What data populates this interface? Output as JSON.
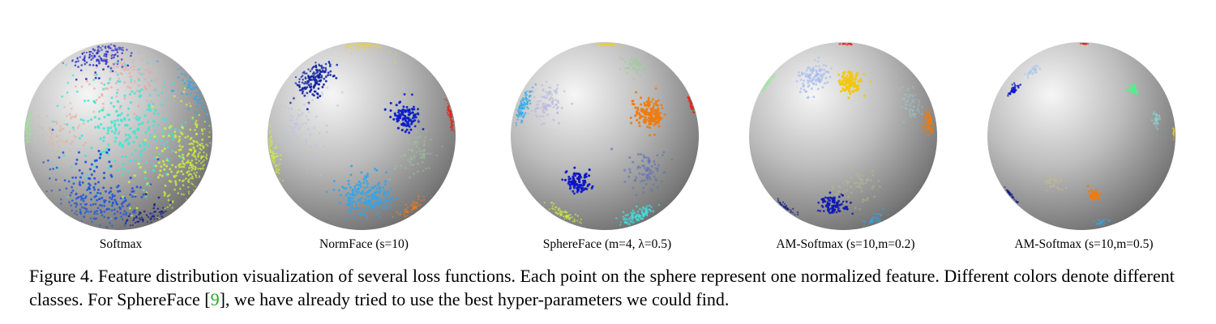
{
  "figure": {
    "panels": [
      {
        "label": "Softmax",
        "clusters": [
          {
            "color": "#1e22c8",
            "lat": 62,
            "lon": -25,
            "spread": 10,
            "n": 140,
            "alpha": 0.95
          },
          {
            "color": "#e8a6a6",
            "lat": 42,
            "lon": 8,
            "spread": 14,
            "n": 110,
            "alpha": 0.7
          },
          {
            "color": "#2ea6ee",
            "lat": 30,
            "lon": 72,
            "spread": 10,
            "n": 90,
            "alpha": 0.85
          },
          {
            "color": "#3ee6d2",
            "lat": 8,
            "lon": 5,
            "spread": 22,
            "n": 260,
            "alpha": 0.85
          },
          {
            "color": "#e6b08c",
            "lat": 2,
            "lon": -38,
            "spread": 11,
            "n": 70,
            "alpha": 0.55
          },
          {
            "color": "#cdf23a",
            "lat": -18,
            "lon": 55,
            "spread": 16,
            "n": 260,
            "alpha": 0.95
          },
          {
            "color": "#1a52e0",
            "lat": -45,
            "lon": -20,
            "spread": 16,
            "n": 230,
            "alpha": 0.95
          },
          {
            "color": "#8ef28a",
            "lat": 5,
            "lon": -80,
            "spread": 6,
            "n": 50,
            "alpha": 0.9
          },
          {
            "color": "#0a1488",
            "lat": -60,
            "lon": 40,
            "spread": 8,
            "n": 60,
            "alpha": 0.9
          }
        ]
      },
      {
        "label": "NormFace (s=10)",
        "clusters": [
          {
            "color": "#0a1ea0",
            "lat": 38,
            "lon": -42,
            "spread": 7,
            "n": 170,
            "alpha": 1
          },
          {
            "color": "#0a1ec8",
            "lat": 12,
            "lon": 30,
            "spread": 5,
            "n": 110,
            "alpha": 1
          },
          {
            "color": "#f2d32a",
            "lat": 78,
            "lon": 15,
            "spread": 7,
            "n": 70,
            "alpha": 0.8
          },
          {
            "color": "#2ea6ee",
            "lat": -42,
            "lon": 5,
            "spread": 9,
            "n": 200,
            "alpha": 0.9
          },
          {
            "color": "#cdf23a",
            "lat": -12,
            "lon": -80,
            "spread": 7,
            "n": 90,
            "alpha": 0.9
          },
          {
            "color": "#ec1e14",
            "lat": 12,
            "lon": 82,
            "spread": 5,
            "n": 70,
            "alpha": 0.95
          },
          {
            "color": "#b6c2e8",
            "lat": 8,
            "lon": -42,
            "spread": 11,
            "n": 80,
            "alpha": 0.55
          },
          {
            "color": "#9cc89c",
            "lat": -10,
            "lon": 38,
            "spread": 8,
            "n": 70,
            "alpha": 0.45
          },
          {
            "color": "#f27a1a",
            "lat": -52,
            "lon": 62,
            "spread": 5,
            "n": 50,
            "alpha": 0.9
          }
        ]
      },
      {
        "label": "SphereFace (m=4, λ=0.5)",
        "clusters": [
          {
            "color": "#f27a0a",
            "lat": 14,
            "lon": 30,
            "spread": 5,
            "n": 160,
            "alpha": 1
          },
          {
            "color": "#0a14c8",
            "lat": -30,
            "lon": -20,
            "spread": 4,
            "n": 110,
            "alpha": 1
          },
          {
            "color": "#2eaaee",
            "lat": 20,
            "lon": -70,
            "spread": 5,
            "n": 110,
            "alpha": 0.95
          },
          {
            "color": "#b6b6e0",
            "lat": 22,
            "lon": -42,
            "spread": 7,
            "n": 90,
            "alpha": 0.7
          },
          {
            "color": "#3ee6e6",
            "lat": -62,
            "lon": 48,
            "spread": 6,
            "n": 120,
            "alpha": 0.9
          },
          {
            "color": "#f2d30a",
            "lat": 84,
            "lon": 0,
            "spread": 4,
            "n": 50,
            "alpha": 0.9
          },
          {
            "color": "#ec1e14",
            "lat": 20,
            "lon": 84,
            "spread": 3,
            "n": 55,
            "alpha": 1
          },
          {
            "color": "#8ed28a",
            "lat": 50,
            "lon": 30,
            "spread": 5,
            "n": 50,
            "alpha": 0.5
          },
          {
            "color": "#5a70b8",
            "lat": -22,
            "lon": 30,
            "spread": 7,
            "n": 80,
            "alpha": 0.6
          },
          {
            "color": "#cdf23a",
            "lat": -58,
            "lon": -58,
            "spread": 5,
            "n": 70,
            "alpha": 0.8
          }
        ]
      },
      {
        "label": "AM-Softmax (s=10,m=0.2)",
        "clusters": [
          {
            "color": "#f2c80a",
            "lat": 36,
            "lon": 5,
            "spread": 4,
            "n": 130,
            "alpha": 1
          },
          {
            "color": "#a6bcee",
            "lat": 40,
            "lon": -26,
            "spread": 6,
            "n": 110,
            "alpha": 0.8
          },
          {
            "color": "#0a14b4",
            "lat": -48,
            "lon": -8,
            "spread": 5,
            "n": 100,
            "alpha": 1
          },
          {
            "color": "#f27a0a",
            "lat": 8,
            "lon": 70,
            "spread": 4,
            "n": 90,
            "alpha": 0.95
          },
          {
            "color": "#9ecaca",
            "lat": 22,
            "lon": 52,
            "spread": 6,
            "n": 60,
            "alpha": 0.5
          },
          {
            "color": "#b6bc8e",
            "lat": -32,
            "lon": 10,
            "spread": 8,
            "n": 60,
            "alpha": 0.5
          },
          {
            "color": "#8ef28a",
            "lat": 35,
            "lon": -84,
            "spread": 4,
            "n": 40,
            "alpha": 0.9
          },
          {
            "color": "#ec1e14",
            "lat": 86,
            "lon": 30,
            "spread": 3,
            "n": 30,
            "alpha": 1
          },
          {
            "color": "#2eaaee",
            "lat": -65,
            "lon": 50,
            "spread": 5,
            "n": 40,
            "alpha": 0.8
          },
          {
            "color": "#0a1488",
            "lat": -50,
            "lon": -78,
            "spread": 4,
            "n": 40,
            "alpha": 0.9
          }
        ]
      },
      {
        "label": "AM-Softmax (s=10,m=0.5)",
        "clusters": [
          {
            "color": "#0a14c8",
            "lat": 30,
            "lon": -58,
            "spread": 2,
            "n": 35,
            "alpha": 1
          },
          {
            "color": "#a6c6ee",
            "lat": 45,
            "lon": -48,
            "spread": 2.5,
            "n": 30,
            "alpha": 0.8
          },
          {
            "color": "#4ef28a",
            "lat": 30,
            "lon": 40,
            "spread": 2,
            "n": 35,
            "alpha": 1
          },
          {
            "color": "#8adada",
            "lat": 10,
            "lon": 55,
            "spread": 2.5,
            "n": 30,
            "alpha": 0.6
          },
          {
            "color": "#f27a0a",
            "lat": -40,
            "lon": 10,
            "spread": 2,
            "n": 40,
            "alpha": 1
          },
          {
            "color": "#bcbc8e",
            "lat": -30,
            "lon": -20,
            "spread": 3,
            "n": 30,
            "alpha": 0.6
          },
          {
            "color": "#ec1e14",
            "lat": 86,
            "lon": 25,
            "spread": 2,
            "n": 25,
            "alpha": 1
          },
          {
            "color": "#0a1488",
            "lat": -40,
            "lon": -82,
            "spread": 3,
            "n": 40,
            "alpha": 0.9
          },
          {
            "color": "#f2d30a",
            "lat": 2,
            "lon": 86,
            "spread": 2,
            "n": 20,
            "alpha": 0.9
          },
          {
            "color": "#2eaaee",
            "lat": -70,
            "lon": 40,
            "spread": 3,
            "n": 25,
            "alpha": 0.8
          }
        ]
      }
    ],
    "caption": {
      "part1": "Figure 4.  Feature distribution visualization of several loss functions. Each point on the sphere represent one normalized feature. Different colors denote different classes. For SphereFace [",
      "cite": "9",
      "part2": "], we have already tried to use the best hyper-parameters we could find."
    }
  }
}
